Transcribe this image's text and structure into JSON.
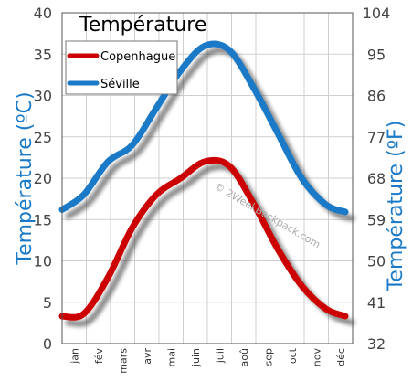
{
  "chart_data": {
    "type": "line",
    "title": "Température",
    "ylabel_left": "Température (ºC)",
    "ylabel_right": "Température (ºF)",
    "watermark": "© 2WeekBackpack.com",
    "categories": [
      "jan",
      "fév",
      "mars",
      "avr",
      "mai",
      "juin",
      "juil",
      "aoû",
      "sep",
      "oct",
      "nov",
      "déc"
    ],
    "y_left_ticks": [
      "0",
      "5",
      "10",
      "15",
      "20",
      "25",
      "30",
      "35",
      "40"
    ],
    "y_right_ticks": [
      "32",
      "41",
      "50",
      "59",
      "68",
      "77",
      "86",
      "95",
      "104"
    ],
    "ylim": [
      0,
      40
    ],
    "grid": true,
    "legend_position": "top-left",
    "series": [
      {
        "name": "Copenhague",
        "color": "#cc0000",
        "values": [
          3.3,
          3.6,
          8,
          14,
          18,
          20,
          22,
          21.5,
          17,
          11.5,
          7,
          4.2
        ]
      },
      {
        "name": "Séville",
        "color": "#1a7ac7",
        "values": [
          16.2,
          18,
          22,
          24,
          28.5,
          33,
          36,
          35.5,
          31,
          25.5,
          20,
          16.8
        ]
      }
    ]
  }
}
